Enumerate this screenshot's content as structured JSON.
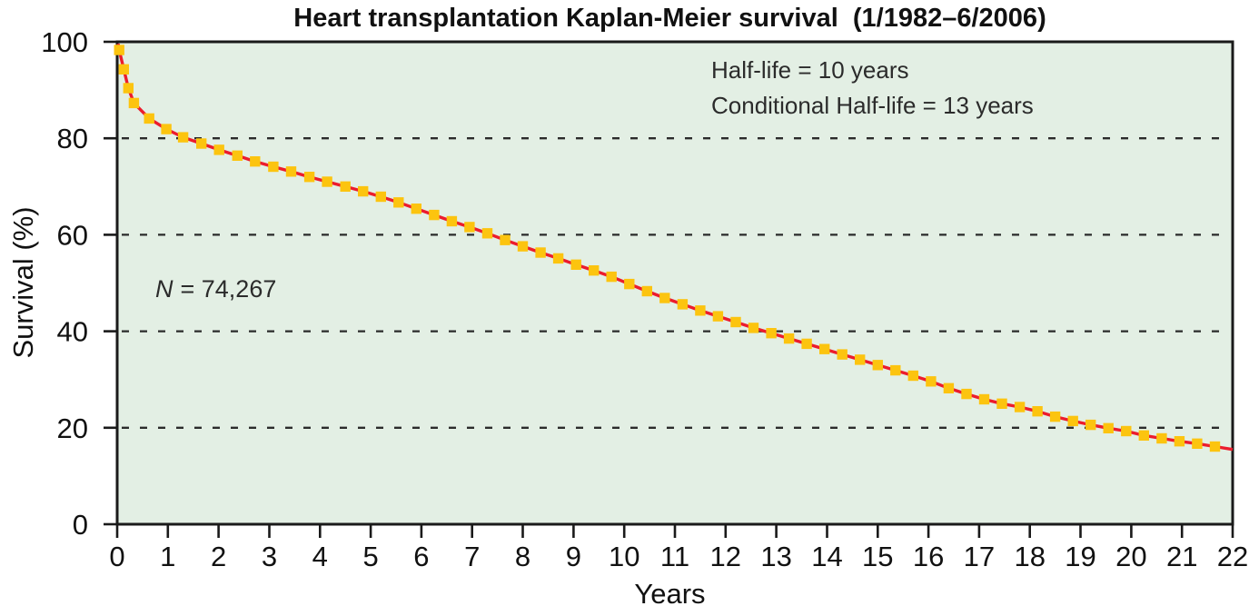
{
  "chart_data": {
    "type": "line",
    "title": "Heart transplantation Kaplan-Meier survival  (1/1982–6/2006)",
    "xlabel": "Years",
    "ylabel": "Survival (%)",
    "xlim": [
      0,
      22
    ],
    "ylim": [
      0,
      100
    ],
    "xticks": [
      0,
      1,
      2,
      3,
      4,
      5,
      6,
      7,
      8,
      9,
      10,
      11,
      12,
      13,
      14,
      15,
      16,
      17,
      18,
      19,
      20,
      21,
      22
    ],
    "yticks": [
      0,
      20,
      40,
      60,
      80,
      100
    ],
    "gridlines": [
      20,
      40,
      60,
      80
    ],
    "grid_style": "dashed",
    "legend": "none",
    "annotations": {
      "half_life": "Half-life = 10 years",
      "conditional_half_life": "Conditional Half-life = 13 years",
      "n_label": "N",
      "n_value": "= 74,267"
    },
    "series": [
      {
        "name": "Kaplan-Meier survival",
        "marker": "square",
        "points": [
          [
            0.04,
            98.3
          ],
          [
            0.13,
            94.3
          ],
          [
            0.22,
            90.4
          ],
          [
            0.33,
            87.3
          ],
          [
            0.63,
            84.1
          ],
          [
            0.97,
            81.9
          ],
          [
            1.3,
            80.2
          ],
          [
            1.66,
            78.9
          ],
          [
            2.01,
            77.6
          ],
          [
            2.37,
            76.4
          ],
          [
            2.72,
            75.2
          ],
          [
            3.08,
            74.1
          ],
          [
            3.43,
            73.1
          ],
          [
            3.79,
            72.0
          ],
          [
            4.14,
            71.0
          ],
          [
            4.5,
            70.0
          ],
          [
            4.85,
            69.0
          ],
          [
            5.2,
            67.9
          ],
          [
            5.55,
            66.7
          ],
          [
            5.9,
            65.4
          ],
          [
            6.25,
            64.1
          ],
          [
            6.6,
            62.8
          ],
          [
            6.95,
            61.6
          ],
          [
            7.3,
            60.3
          ],
          [
            7.65,
            58.9
          ],
          [
            8.0,
            57.6
          ],
          [
            8.35,
            56.3
          ],
          [
            8.7,
            55.1
          ],
          [
            9.05,
            53.8
          ],
          [
            9.4,
            52.6
          ],
          [
            9.75,
            51.3
          ],
          [
            10.1,
            49.8
          ],
          [
            10.45,
            48.3
          ],
          [
            10.8,
            46.9
          ],
          [
            11.15,
            45.6
          ],
          [
            11.5,
            44.3
          ],
          [
            11.85,
            43.1
          ],
          [
            12.2,
            41.9
          ],
          [
            12.55,
            40.7
          ],
          [
            12.9,
            39.6
          ],
          [
            13.25,
            38.5
          ],
          [
            13.6,
            37.4
          ],
          [
            13.95,
            36.3
          ],
          [
            14.3,
            35.2
          ],
          [
            14.65,
            34.1
          ],
          [
            15.0,
            33.0
          ],
          [
            15.35,
            31.9
          ],
          [
            15.7,
            30.8
          ],
          [
            16.05,
            29.6
          ],
          [
            16.4,
            28.2
          ],
          [
            16.75,
            27.0
          ],
          [
            17.1,
            25.9
          ],
          [
            17.45,
            25.0
          ],
          [
            17.8,
            24.3
          ],
          [
            18.15,
            23.4
          ],
          [
            18.5,
            22.3
          ],
          [
            18.85,
            21.4
          ],
          [
            19.2,
            20.6
          ],
          [
            19.55,
            19.9
          ],
          [
            19.9,
            19.3
          ],
          [
            20.25,
            18.4
          ],
          [
            20.6,
            17.8
          ],
          [
            20.95,
            17.2
          ],
          [
            21.3,
            16.7
          ],
          [
            21.65,
            16.1
          ]
        ]
      }
    ],
    "curve_start": [
      0.02,
      99.6
    ],
    "curve_end": [
      22.0,
      15.5
    ],
    "colors": {
      "plot_bg": "#e3efe4",
      "line": "#ec1c2d",
      "marker": "#fcc40f",
      "axis": "#1a1a1a",
      "grid": "#2b2b2b",
      "text": "#1a1a1a"
    }
  }
}
